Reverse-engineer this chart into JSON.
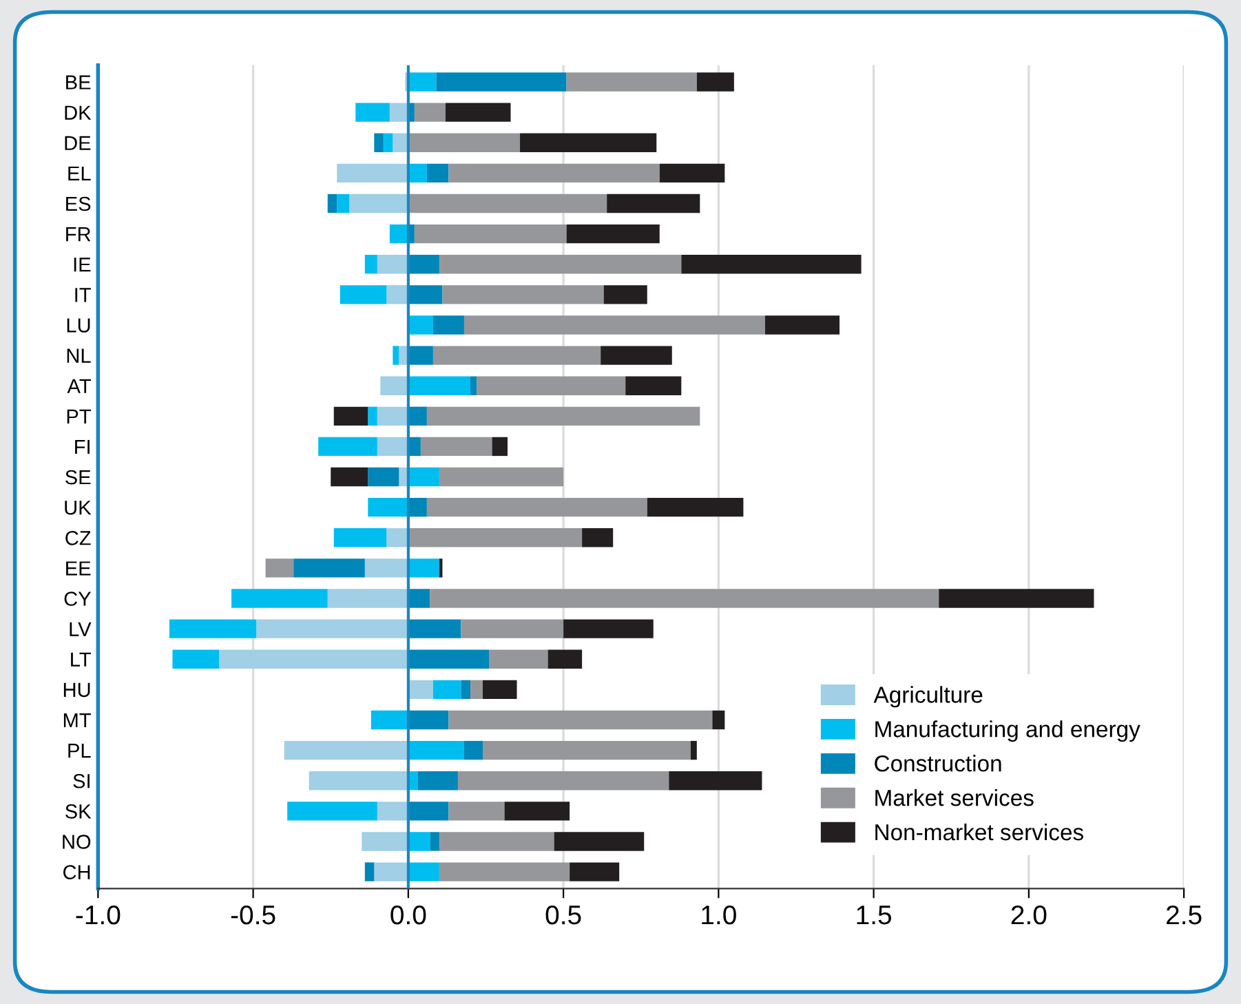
{
  "chart_data": {
    "type": "bar",
    "orientation": "horizontal",
    "stacked": true,
    "categories": [
      "BE",
      "DK",
      "DE",
      "EL",
      "ES",
      "FR",
      "IE",
      "IT",
      "LU",
      "NL",
      "AT",
      "PT",
      "FI",
      "SE",
      "UK",
      "CZ",
      "EE",
      "CY",
      "LV",
      "LT",
      "HU",
      "MT",
      "PL",
      "SI",
      "SK",
      "NO",
      "CH"
    ],
    "series": [
      {
        "name": "Agriculture",
        "color": "#a0cfe6",
        "values": [
          -0.01,
          -0.06,
          -0.05,
          -0.23,
          -0.19,
          null,
          -0.1,
          -0.07,
          null,
          -0.03,
          -0.09,
          -0.1,
          -0.1,
          -0.03,
          null,
          -0.07,
          -0.14,
          -0.26,
          -0.49,
          -0.61,
          0.08,
          null,
          -0.4,
          -0.32,
          -0.1,
          -0.15,
          -0.11
        ]
      },
      {
        "name": "Manufacturing and energy",
        "color": "#00bdf0",
        "values": [
          0.09,
          -0.11,
          -0.03,
          0.06,
          -0.04,
          -0.06,
          -0.04,
          -0.15,
          0.08,
          -0.02,
          0.2,
          -0.03,
          -0.19,
          0.1,
          -0.13,
          -0.17,
          0.1,
          -0.31,
          -0.28,
          -0.15,
          0.09,
          -0.12,
          0.18,
          0.03,
          -0.29,
          0.07,
          0.1
        ]
      },
      {
        "name": "Construction",
        "color": "#0086b8",
        "values": [
          0.42,
          0.02,
          -0.03,
          0.07,
          -0.03,
          0.02,
          0.1,
          0.11,
          0.1,
          0.08,
          0.02,
          0.06,
          0.04,
          -0.1,
          0.06,
          null,
          -0.23,
          0.07,
          0.17,
          0.26,
          0.03,
          0.13,
          0.06,
          0.13,
          0.13,
          0.03,
          -0.03
        ]
      },
      {
        "name": "Market services",
        "color": "#96979b",
        "values": [
          0.42,
          0.1,
          0.36,
          0.68,
          0.64,
          0.49,
          0.78,
          0.52,
          0.97,
          0.54,
          0.48,
          0.88,
          0.23,
          0.4,
          0.71,
          0.56,
          -0.09,
          1.64,
          0.33,
          0.19,
          0.04,
          0.85,
          0.67,
          0.68,
          0.18,
          0.37,
          0.42
        ]
      },
      {
        "name": "Non-market services",
        "color": "#231f20",
        "values": [
          0.12,
          0.21,
          0.44,
          0.21,
          0.3,
          0.3,
          0.58,
          0.14,
          0.24,
          0.23,
          0.18,
          -0.11,
          0.05,
          -0.12,
          0.31,
          0.1,
          0.01,
          0.5,
          0.29,
          0.11,
          0.11,
          0.04,
          0.02,
          0.3,
          0.21,
          0.29,
          0.16
        ]
      }
    ],
    "xlim": [
      -1,
      2.5
    ],
    "xticks": [
      {
        "value": -1,
        "label": "-1.0"
      },
      {
        "value": -0.5,
        "label": "-0.5"
      },
      {
        "value": 0,
        "label": "0.0"
      },
      {
        "value": 0.5,
        "label": "0.5"
      },
      {
        "value": 1,
        "label": "1.0"
      },
      {
        "value": 1.5,
        "label": "1.5"
      },
      {
        "value": 2,
        "label": "2.0"
      },
      {
        "value": 2.5,
        "label": "2.5"
      }
    ],
    "ref_lines": [
      {
        "axis": "x",
        "value": 0,
        "color": "#1a86c0"
      }
    ],
    "grid": "x",
    "legend": "bottom right"
  }
}
